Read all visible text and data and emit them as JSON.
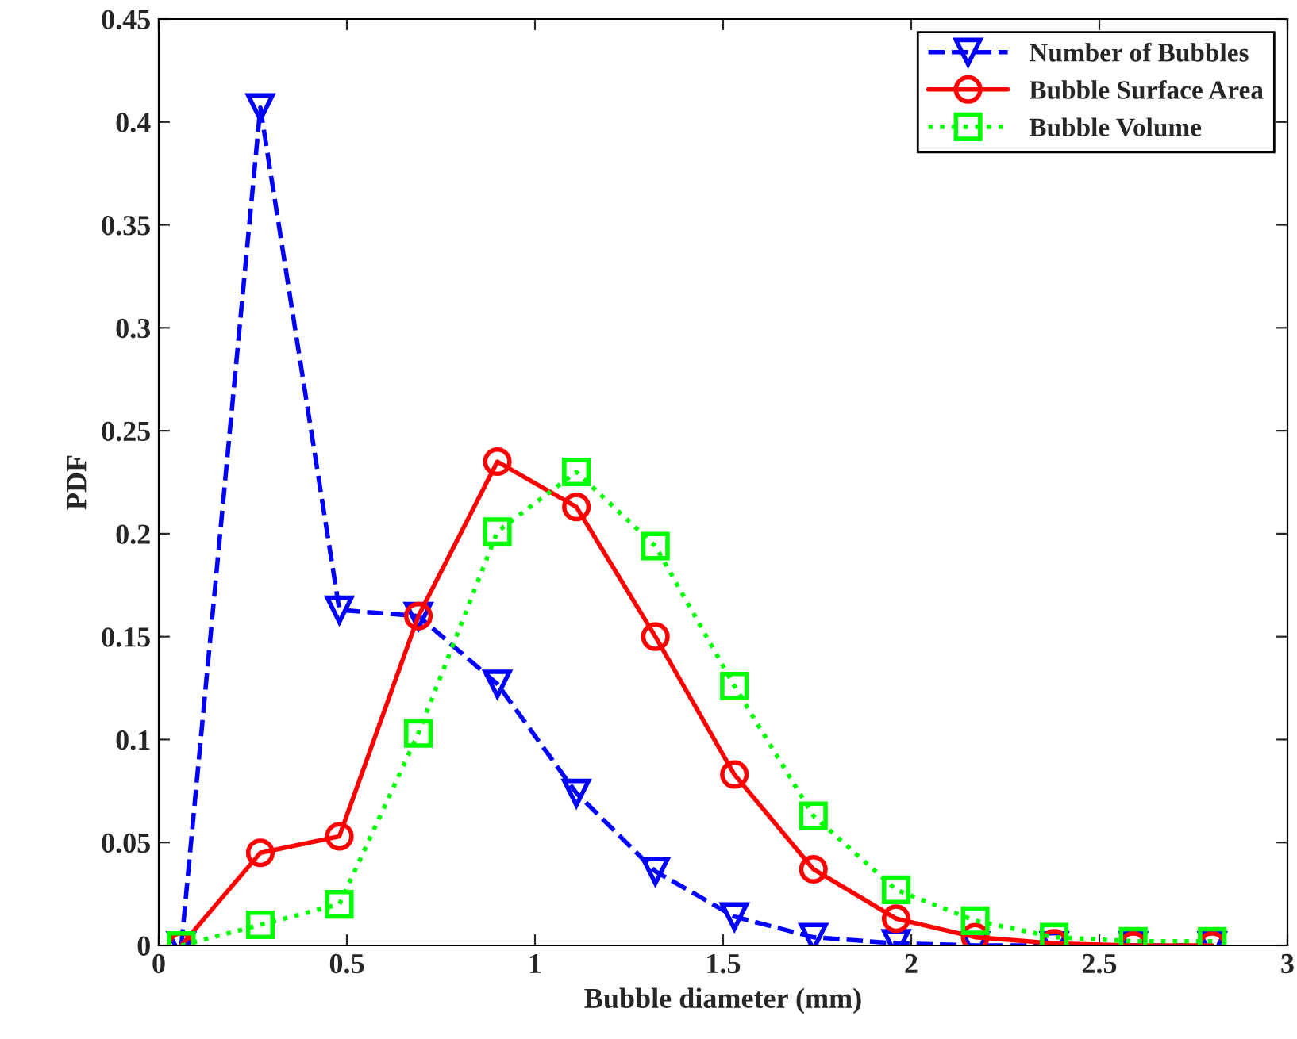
{
  "chart_data": {
    "type": "line",
    "xlabel": "Bubble diameter (mm)",
    "ylabel": "PDF",
    "x": [
      0.06,
      0.27,
      0.48,
      0.69,
      0.9,
      1.11,
      1.32,
      1.53,
      1.74,
      1.96,
      2.17,
      2.38,
      2.59,
      2.8
    ],
    "series": [
      {
        "name": "Number of Bubbles",
        "color": "#0000ff",
        "marker": "triangle",
        "line_style": "dashed",
        "values": [
          0,
          0.407,
          0.163,
          0.16,
          0.127,
          0.074,
          0.036,
          0.014,
          0.004,
          0.001,
          0,
          0,
          0,
          0
        ]
      },
      {
        "name": "Bubble Surface Area",
        "color": "#ff0000",
        "marker": "circle",
        "line_style": "solid",
        "values": [
          0,
          0.045,
          0.053,
          0.16,
          0.235,
          0.213,
          0.15,
          0.083,
          0.037,
          0.013,
          0.004,
          0.001,
          0,
          0
        ]
      },
      {
        "name": "Bubble Volume",
        "color": "#00ff00",
        "marker": "square",
        "line_style": "dotted",
        "values": [
          0,
          0.01,
          0.02,
          0.103,
          0.201,
          0.23,
          0.194,
          0.126,
          0.063,
          0.027,
          0.012,
          0.004,
          0.002,
          0.002
        ]
      }
    ],
    "xlim": [
      0,
      3
    ],
    "xticks": [
      0,
      0.5,
      1,
      1.5,
      2,
      2.5,
      3
    ],
    "ylim": [
      0,
      0.45
    ],
    "yticks": [
      0,
      0.05,
      0.1,
      0.15,
      0.2,
      0.25,
      0.3,
      0.35,
      0.4,
      0.45
    ],
    "grid": false,
    "legend": "top right"
  }
}
